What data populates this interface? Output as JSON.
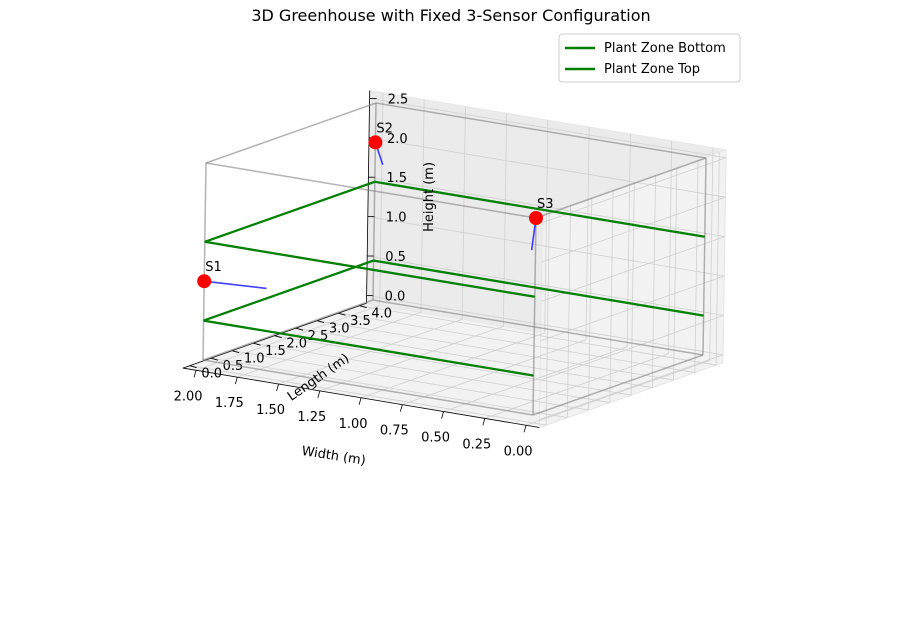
{
  "chart_data": {
    "type": "scatter",
    "projection": "3d",
    "title": "3D Greenhouse with Fixed 3-Sensor Configuration",
    "xlabel": "Width (m)",
    "ylabel": "Length (m)",
    "zlabel": "Height (m)",
    "xlim": [
      0,
      2
    ],
    "ylim": [
      0,
      4
    ],
    "zlim": [
      0,
      2.5
    ],
    "xticks": [
      "0.00",
      "0.25",
      "0.50",
      "0.75",
      "1.00",
      "1.25",
      "1.50",
      "1.75",
      "2.00"
    ],
    "yticks": [
      "0.0",
      "0.5",
      "1.0",
      "1.5",
      "2.0",
      "2.5",
      "3.0",
      "3.5",
      "4.0"
    ],
    "zticks": [
      "0.0",
      "0.5",
      "1.0",
      "1.5",
      "2.0",
      "2.5"
    ],
    "grid": true,
    "legend": {
      "placement": "top-right",
      "entries": [
        {
          "label": "Plant Zone Bottom",
          "color": "#008000"
        },
        {
          "label": "Plant Zone Top",
          "color": "#008000"
        }
      ]
    },
    "box": {
      "x": [
        0,
        2
      ],
      "y": [
        0,
        4
      ],
      "z": [
        0,
        2.5
      ],
      "color": "#808080"
    },
    "plant_zones": [
      {
        "name": "Plant Zone Bottom",
        "x": [
          0,
          2
        ],
        "y": [
          0,
          4
        ],
        "z": 0.5,
        "color": "#008000"
      },
      {
        "name": "Plant Zone Top",
        "x": [
          0,
          2
        ],
        "y": [
          0,
          4
        ],
        "z": 1.5,
        "color": "#008000"
      }
    ],
    "sensors": [
      {
        "label": "S1",
        "x": 2.0,
        "y": 0.0,
        "z": 1.0,
        "dir": [
          -0.25,
          0.5,
          -0.1
        ]
      },
      {
        "label": "S2",
        "x": 2.0,
        "y": 4.0,
        "z": 2.0,
        "dir": [
          -0.2,
          -0.6,
          -0.1
        ]
      },
      {
        "label": "S3",
        "x": 0.0,
        "y": 0.0,
        "z": 2.5,
        "dir": [
          0.1,
          0.3,
          -0.5
        ]
      }
    ],
    "sensor_color": "#ff0000",
    "arrow_color": "#0000ff"
  }
}
